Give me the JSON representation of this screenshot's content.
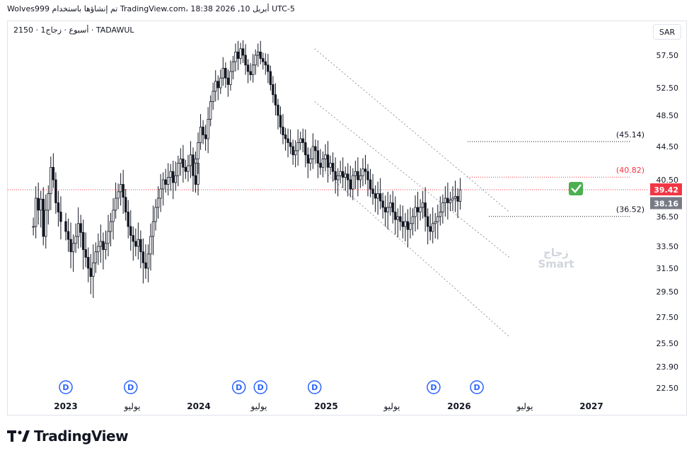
{
  "header": {
    "text": "Wolves999 تم إنشاؤها باستخدام TradingView.com، 18:38 2026 ,10 أبريل UTC-5"
  },
  "symbol_line": "2150 · 1أسبوع · زجاج · TADAWUL",
  "currency": "SAR",
  "brand": "TradingView",
  "colors": {
    "up": "#131722",
    "down": "#131722",
    "current_price_bg": "#f23645",
    "prev_price_bg": "#787b86",
    "target_red": "#f23645",
    "dividend": "#2962ff",
    "check": "#4caf50"
  },
  "chart_data": {
    "type": "candlestick",
    "y_ticks": [
      "57.50",
      "52.50",
      "48.50",
      "44.50",
      "40.50",
      "36.50",
      "33.50",
      "31.50",
      "29.50",
      "27.50",
      "25.50",
      "23.90",
      "22.50"
    ],
    "x_ticks": [
      "2023",
      "يوليو",
      "2024",
      "يوليو",
      "2025",
      "يوليو",
      "2026",
      "يوليو",
      "2027"
    ],
    "price_labels": [
      {
        "value": 39.42,
        "text": "39.42",
        "style": "current"
      },
      {
        "value": 38.16,
        "text": "38.16",
        "style": "previous"
      }
    ],
    "levels": [
      {
        "value": 45.14,
        "label": "(45.14)",
        "color": "#131722"
      },
      {
        "value": 40.82,
        "label": "(40.82)",
        "color": "#f23645"
      },
      {
        "value": 36.52,
        "label": "(36.52)",
        "color": "#131722"
      }
    ],
    "current_price_line": 39.42,
    "watermark": [
      "زجاج",
      "Smart"
    ],
    "dividend_marker": "D",
    "dividend_dates": [
      "2023-01",
      "2023-07",
      "2024-05",
      "2024-07",
      "2024-12",
      "2025-11",
      "2026-03"
    ],
    "channel_lines": [
      {
        "from": [
          "2024-12",
          58.5
        ],
        "to": [
          "2026-06",
          37.0
        ]
      },
      {
        "from": [
          "2024-12",
          50.5
        ],
        "to": [
          "2026-06",
          32.5
        ]
      },
      {
        "from": [
          "2024-12",
          42.5
        ],
        "to": [
          "2026-06",
          26.0
        ]
      }
    ],
    "series": [
      {
        "date": "2022-10",
        "values": [
          35.5,
          38.5,
          37.2,
          38.4,
          34.5,
          37.2,
          39.0,
          42.0,
          40.5,
          38.0,
          37.0,
          36.0
        ]
      },
      {
        "date": "2023-01",
        "values": [
          35.0,
          34.2,
          33.0,
          33.8,
          34.5,
          35.8,
          34.9,
          33.2,
          32.5,
          31.5,
          30.8,
          32.0,
          33.0,
          33.5,
          34.0,
          33.2,
          33.8,
          35.0,
          36.0,
          37.2,
          38.5,
          39.2,
          40.0,
          38.6,
          37.0,
          35.5,
          34.6,
          34.0,
          33.5,
          34.2,
          33.0,
          32.0,
          31.5,
          32.8,
          34.5,
          36.0,
          37.5,
          38.5,
          39.5,
          40.5,
          40.0,
          40.8,
          41.5,
          40.2,
          41.0,
          42.5,
          43.0,
          42.0,
          41.5,
          42.2,
          43.5,
          41.0,
          40.0,
          42.5
        ]
      },
      {
        "date": "2024-01",
        "values": [
          43.0,
          45.0,
          47.0,
          46.0,
          45.5,
          48.0,
          50.5,
          52.0,
          53.5,
          52.5,
          54.0,
          55.5,
          54.0,
          53.0,
          55.0,
          56.5,
          58.0,
          57.0,
          58.5,
          57.5,
          56.0,
          55.0,
          54.5,
          56.0,
          57.5,
          58.0,
          57.0,
          56.5,
          56.0,
          55.0,
          53.0,
          51.5,
          50.0,
          48.5,
          47.0,
          46.0,
          45.5,
          45.0,
          44.5,
          43.5,
          44.0,
          45.0,
          45.5,
          45.0,
          43.5,
          42.5,
          43.0,
          44.5,
          44.0,
          42.5,
          42.0,
          43.0
        ]
      },
      {
        "date": "2025-01",
        "values": [
          43.5,
          42.0,
          42.5,
          41.5,
          40.5,
          41.0,
          41.5,
          40.8,
          41.2,
          40.5,
          39.5,
          41.0,
          41.5,
          40.5,
          41.0,
          41.8,
          41.5,
          40.5,
          39.5,
          39.0,
          38.5,
          39.0,
          38.2,
          37.5,
          37.0,
          37.5,
          38.0,
          37.0,
          36.2,
          36.5,
          36.0,
          35.5,
          36.0,
          35.2,
          35.8,
          36.5,
          37.5,
          37.0,
          37.5,
          38.0,
          36.5,
          35.5,
          35.0,
          35.8,
          36.0,
          36.5,
          37.0,
          38.0,
          38.5,
          38.0,
          38.3,
          38.5
        ]
      },
      {
        "date": "2026-01",
        "values": [
          38.7,
          38.16,
          39.42
        ]
      }
    ]
  }
}
